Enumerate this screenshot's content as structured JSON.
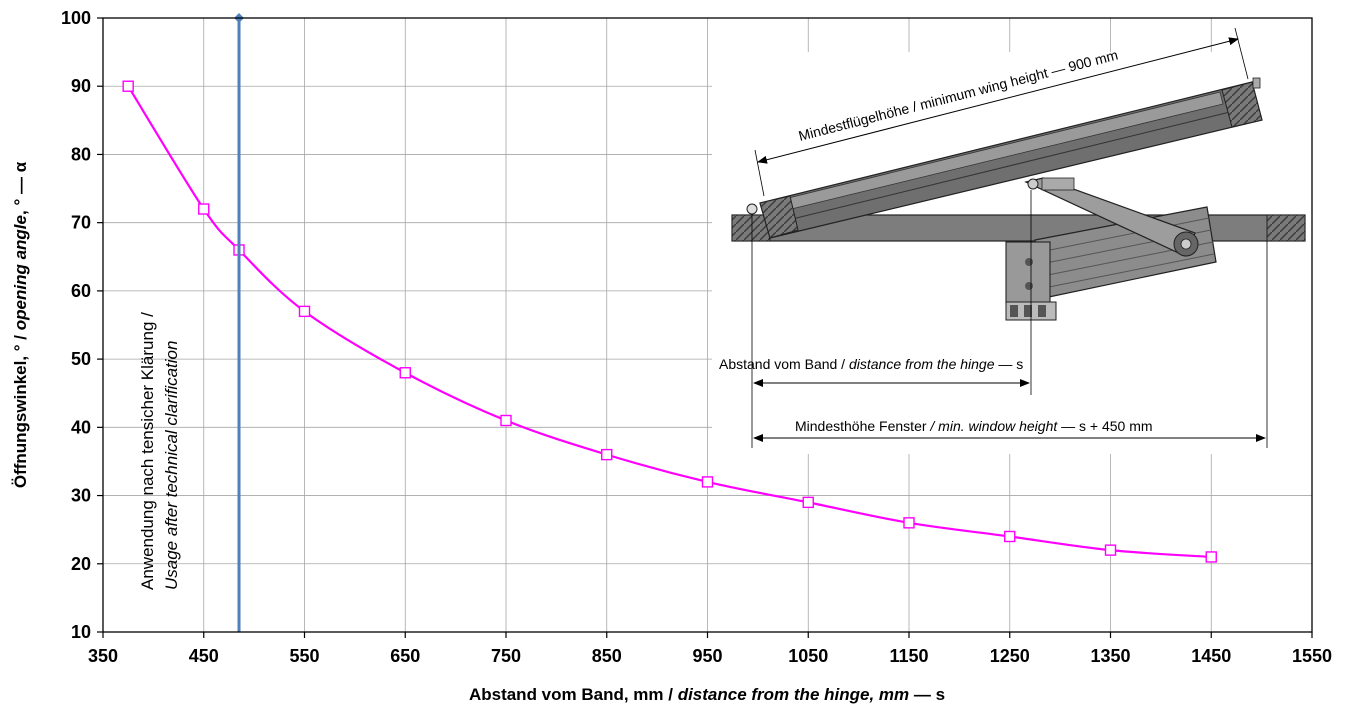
{
  "chart_data": {
    "type": "line",
    "x": [
      375,
      450,
      485,
      550,
      650,
      750,
      850,
      950,
      1050,
      1150,
      1250,
      1350,
      1450
    ],
    "series": [
      {
        "values": [
          90,
          72,
          66,
          57,
          48,
          41,
          36,
          32,
          29,
          26,
          24,
          22,
          21
        ],
        "color": "#ff00ff",
        "marker": "open-square"
      }
    ],
    "xlim": [
      350,
      1550
    ],
    "ylim": [
      10,
      100
    ],
    "x_ticks": [
      "350",
      "450",
      "550",
      "650",
      "750",
      "850",
      "950",
      "1050",
      "1150",
      "1250",
      "1350",
      "1450",
      "1550"
    ],
    "y_ticks": [
      "10",
      "20",
      "30",
      "40",
      "50",
      "60",
      "70",
      "80",
      "90",
      "100"
    ],
    "xlabel": {
      "prefix": "Abstand vom Band, mm / ",
      "italic": "distance from the hinge, mm",
      "suffix": " — s"
    },
    "ylabel": {
      "prefix": "Öffnungswinkel, ° / ",
      "italic": "opening angle",
      "suffix": ", ° — α"
    },
    "grid": true,
    "vertical_line": {
      "x": 485,
      "color": "#4f81bd",
      "label_line1": "Anwendung nach tensicher Klärung /",
      "label_line2": "Usage after technical clarification"
    },
    "diagram_labels": {
      "wing_height": "Mindestflügelhöhe / minimum wing height — 900 mm",
      "distance_prefix": "Abstand vom Band / ",
      "distance_italic": "distance from the hinge",
      "distance_suffix": " — s",
      "window_prefix": "Mindesthöhe Fenster ",
      "window_italic": "/ min. window height",
      "window_suffix": " — s + 450 mm"
    }
  }
}
